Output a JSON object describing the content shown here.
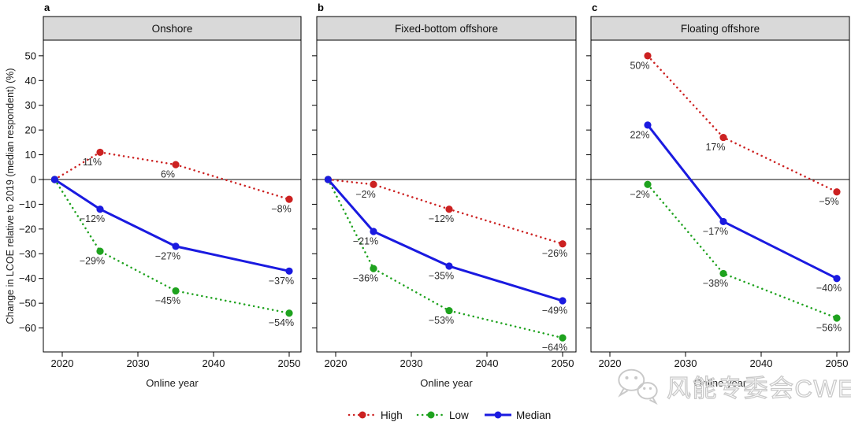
{
  "watermark": {
    "text": "风能专委会CWEA",
    "icon": "wechat-icon"
  },
  "chart_data": {
    "type": "line",
    "title": "",
    "ylabel": "Change in LCOE relative to 2019 (median respondent) (%)",
    "xlabel": "Online year",
    "ylim": [
      -70,
      56
    ],
    "yticks": [
      50,
      40,
      30,
      20,
      10,
      0,
      -10,
      -20,
      -30,
      -40,
      -50,
      -60
    ],
    "xticks": [
      2020,
      2030,
      2040,
      2050
    ],
    "grid": false,
    "zero_line": 0,
    "legend_position": "bottom-center",
    "panels": [
      {
        "letter": "a",
        "title": "Onshore",
        "series": [
          {
            "name": "High",
            "style": "dotted",
            "color": "#cc2121",
            "x": [
              2019,
              2025,
              2035,
              2050
            ],
            "values": [
              0,
              11,
              6,
              -8
            ],
            "point_labels": [
              "",
              "11%",
              "6%",
              "−8%"
            ]
          },
          {
            "name": "Low",
            "style": "dotted",
            "color": "#1ea21e",
            "x": [
              2019,
              2025,
              2035,
              2050
            ],
            "values": [
              0,
              -29,
              -45,
              -54
            ],
            "point_labels": [
              "",
              "−29%",
              "−45%",
              "−54%"
            ]
          },
          {
            "name": "Median",
            "style": "solid",
            "color": "#1a1ae0",
            "x": [
              2019,
              2025,
              2035,
              2050
            ],
            "values": [
              0,
              -12,
              -27,
              -37
            ],
            "point_labels": [
              "",
              "−12%",
              "−27%",
              "−37%"
            ]
          }
        ]
      },
      {
        "letter": "b",
        "title": "Fixed-bottom offshore",
        "series": [
          {
            "name": "High",
            "style": "dotted",
            "color": "#cc2121",
            "x": [
              2019,
              2025,
              2035,
              2050
            ],
            "values": [
              0,
              -2,
              -12,
              -26
            ],
            "point_labels": [
              "",
              "−2%",
              "−12%",
              "−26%"
            ]
          },
          {
            "name": "Low",
            "style": "dotted",
            "color": "#1ea21e",
            "x": [
              2019,
              2025,
              2035,
              2050
            ],
            "values": [
              0,
              -36,
              -53,
              -64
            ],
            "point_labels": [
              "",
              "−36%",
              "−53%",
              "−64%"
            ]
          },
          {
            "name": "Median",
            "style": "solid",
            "color": "#1a1ae0",
            "x": [
              2019,
              2025,
              2035,
              2050
            ],
            "values": [
              0,
              -21,
              -35,
              -49
            ],
            "point_labels": [
              "",
              "−21%",
              "−35%",
              "−49%"
            ]
          }
        ]
      },
      {
        "letter": "c",
        "title": "Floating offshore",
        "series": [
          {
            "name": "High",
            "style": "dotted",
            "color": "#cc2121",
            "x": [
              2025,
              2035,
              2050
            ],
            "values": [
              50,
              17,
              -5
            ],
            "point_labels": [
              "50%",
              "17%",
              "−5%"
            ]
          },
          {
            "name": "Low",
            "style": "dotted",
            "color": "#1ea21e",
            "x": [
              2025,
              2035,
              2050
            ],
            "values": [
              -2,
              -38,
              -56
            ],
            "point_labels": [
              "−2%",
              "−38%",
              "−56%"
            ]
          },
          {
            "name": "Median",
            "style": "solid",
            "color": "#1a1ae0",
            "x": [
              2025,
              2035,
              2050
            ],
            "values": [
              22,
              -17,
              -40
            ],
            "point_labels": [
              "22%",
              "−17%",
              "−40%"
            ]
          }
        ]
      }
    ],
    "legend": [
      {
        "name": "High",
        "style": "dotted",
        "color": "#cc2121"
      },
      {
        "name": "Low",
        "style": "dotted",
        "color": "#1ea21e"
      },
      {
        "name": "Median",
        "style": "solid",
        "color": "#1a1ae0"
      }
    ],
    "header_fill": "#d9d9d9",
    "axis_color": "#000000",
    "label_color": "#2e2e2e"
  }
}
